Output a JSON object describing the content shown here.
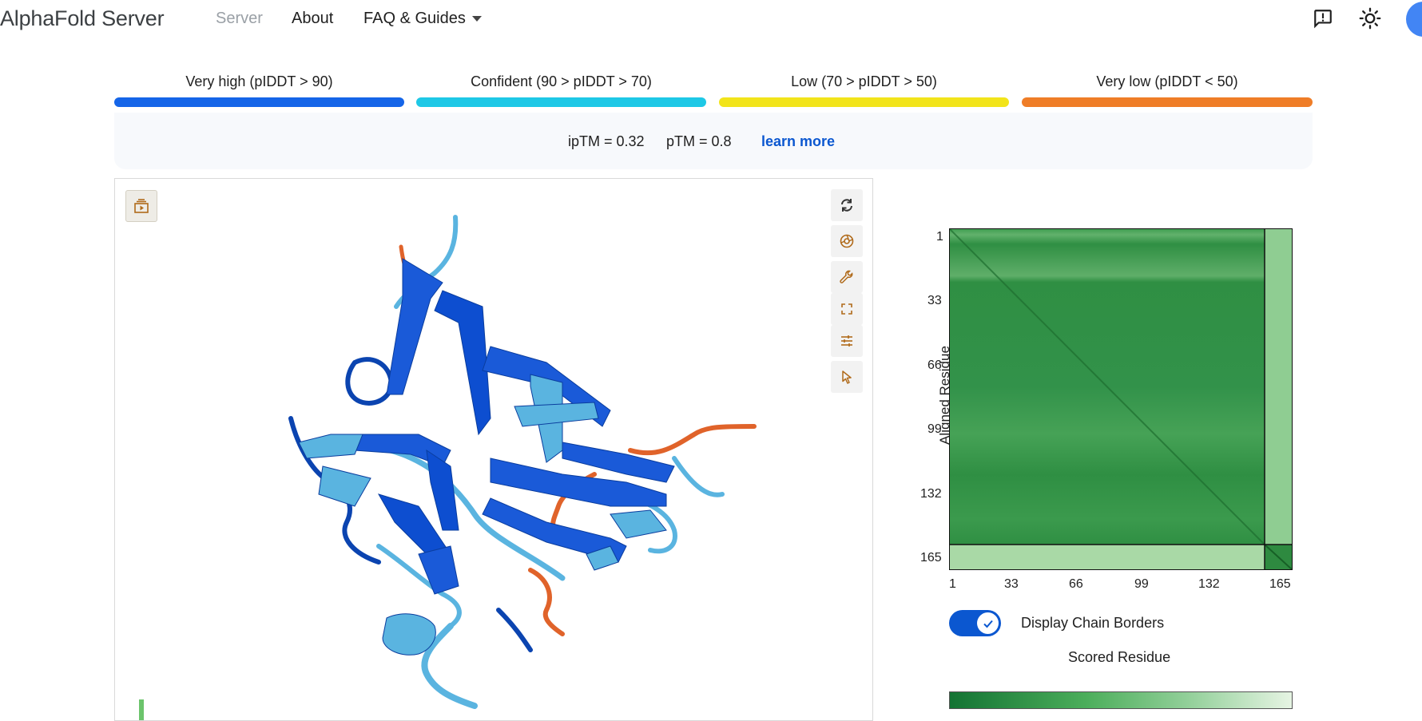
{
  "app": {
    "brand": "AlphaFold Server"
  },
  "nav": {
    "server": "Server",
    "about": "About",
    "faq": "FAQ & Guides"
  },
  "legend": [
    {
      "label": "Very high (pIDDT > 90)",
      "color": "#1565e8"
    },
    {
      "label": "Confident (90 > pIDDT > 70)",
      "color": "#1ec8e6"
    },
    {
      "label": "Low (70 > pIDDT > 50)",
      "color": "#f2e41a"
    },
    {
      "label": "Very low (pIDDT < 50)",
      "color": "#ef7d27"
    }
  ],
  "metrics": {
    "iptm": "ipTM = 0.32",
    "ptm": "pTM = 0.8",
    "learn_more": "learn more"
  },
  "viewer": {
    "tools": [
      "playback-icon",
      "rotate-icon",
      "camera-icon",
      "wrench-icon",
      "fullscreen-icon",
      "sliders-icon",
      "pointer-icon"
    ]
  },
  "pae": {
    "y_axis_title": "Aligned Residue",
    "y_ticks": [
      "1",
      "33",
      "66",
      "99",
      "132",
      "165"
    ],
    "x_ticks": [
      "1",
      "33",
      "66",
      "99",
      "132",
      "165"
    ],
    "x_axis_title": "Scored Residue",
    "toggle_label": "Display Chain Borders",
    "toggle_on": true,
    "colors": {
      "dark": "#137333",
      "light": "#e6f4e3"
    }
  }
}
